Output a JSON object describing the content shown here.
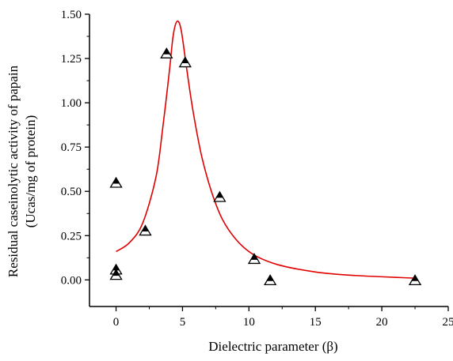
{
  "chart_data": {
    "type": "scatter",
    "title": "",
    "xlabel": "Dielectric parameter (β)",
    "ylabel_line1": "Residual caseinolytic activity of papain",
    "ylabel_line2": "(Ucas/mg of protein)",
    "xlim": [
      -2,
      25
    ],
    "ylim": [
      -0.15,
      1.5
    ],
    "x_ticks": [
      0,
      5,
      10,
      15,
      20,
      25
    ],
    "x_tick_labels": [
      "0",
      "5",
      "10",
      "15",
      "20",
      "25"
    ],
    "y_ticks": [
      0.0,
      0.25,
      0.5,
      0.75,
      1.0,
      1.25,
      1.5
    ],
    "y_tick_labels": [
      "0.00",
      "0.25",
      "0.50",
      "0.75",
      "1.00",
      "1.25",
      "1.50"
    ],
    "grid": false,
    "legend": "none",
    "marker": "half-filled-triangle",
    "marker_color": "#000000",
    "fit_color": "#e00000",
    "series": [
      {
        "kind": "points",
        "points": [
          {
            "x": 0.0,
            "y": 0.55
          },
          {
            "x": 0.0,
            "y": 0.06
          },
          {
            "x": 0.0,
            "y": 0.03
          },
          {
            "x": 2.2,
            "y": 0.28
          },
          {
            "x": 3.8,
            "y": 1.28
          },
          {
            "x": 5.2,
            "y": 1.23
          },
          {
            "x": 7.8,
            "y": 0.47
          },
          {
            "x": 10.4,
            "y": 0.12
          },
          {
            "x": 11.6,
            "y": 0.0
          },
          {
            "x": 22.5,
            "y": 0.0
          }
        ]
      },
      {
        "kind": "fit",
        "points": [
          {
            "x": 0.0,
            "y": 0.16
          },
          {
            "x": 1.0,
            "y": 0.21
          },
          {
            "x": 2.0,
            "y": 0.32
          },
          {
            "x": 3.0,
            "y": 0.58
          },
          {
            "x": 3.5,
            "y": 0.85
          },
          {
            "x": 4.0,
            "y": 1.17
          },
          {
            "x": 4.3,
            "y": 1.38
          },
          {
            "x": 4.6,
            "y": 1.46
          },
          {
            "x": 4.9,
            "y": 1.41
          },
          {
            "x": 5.3,
            "y": 1.2
          },
          {
            "x": 5.8,
            "y": 0.95
          },
          {
            "x": 6.5,
            "y": 0.68
          },
          {
            "x": 7.5,
            "y": 0.43
          },
          {
            "x": 8.5,
            "y": 0.28
          },
          {
            "x": 10.0,
            "y": 0.16
          },
          {
            "x": 12.0,
            "y": 0.09
          },
          {
            "x": 15.0,
            "y": 0.045
          },
          {
            "x": 18.0,
            "y": 0.025
          },
          {
            "x": 22.5,
            "y": 0.01
          }
        ]
      }
    ]
  }
}
